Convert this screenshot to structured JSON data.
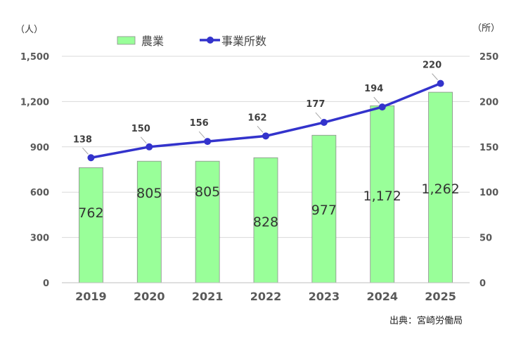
{
  "chart_data": {
    "type": "bar+line",
    "categories": [
      "2019",
      "2020",
      "2021",
      "2022",
      "2023",
      "2024",
      "2025"
    ],
    "series": [
      {
        "name": "農業",
        "type": "bar",
        "axis": "left",
        "values": [
          762,
          805,
          805,
          828,
          977,
          1172,
          1262
        ],
        "labels": [
          "762",
          "805",
          "805",
          "828",
          "977",
          "1,172",
          "1,262"
        ],
        "color": "#99ff99"
      },
      {
        "name": "事業所数",
        "type": "line",
        "axis": "right",
        "values": [
          138,
          150,
          156,
          162,
          177,
          194,
          220
        ],
        "labels": [
          "138",
          "150",
          "156",
          "162",
          "177",
          "194",
          "220"
        ],
        "color": "#3333cc"
      }
    ],
    "left_axis": {
      "unit": "（人）",
      "ylim": [
        0,
        1500
      ],
      "ticks": [
        "0",
        "300",
        "600",
        "900",
        "1,200",
        "1,500"
      ]
    },
    "right_axis": {
      "unit": "（所）",
      "ylim": [
        0,
        250
      ],
      "ticks": [
        "0",
        "50",
        "100",
        "150",
        "200",
        "250"
      ]
    },
    "grid": true,
    "legend": "top-center",
    "source": "出典：宮崎労働局"
  }
}
